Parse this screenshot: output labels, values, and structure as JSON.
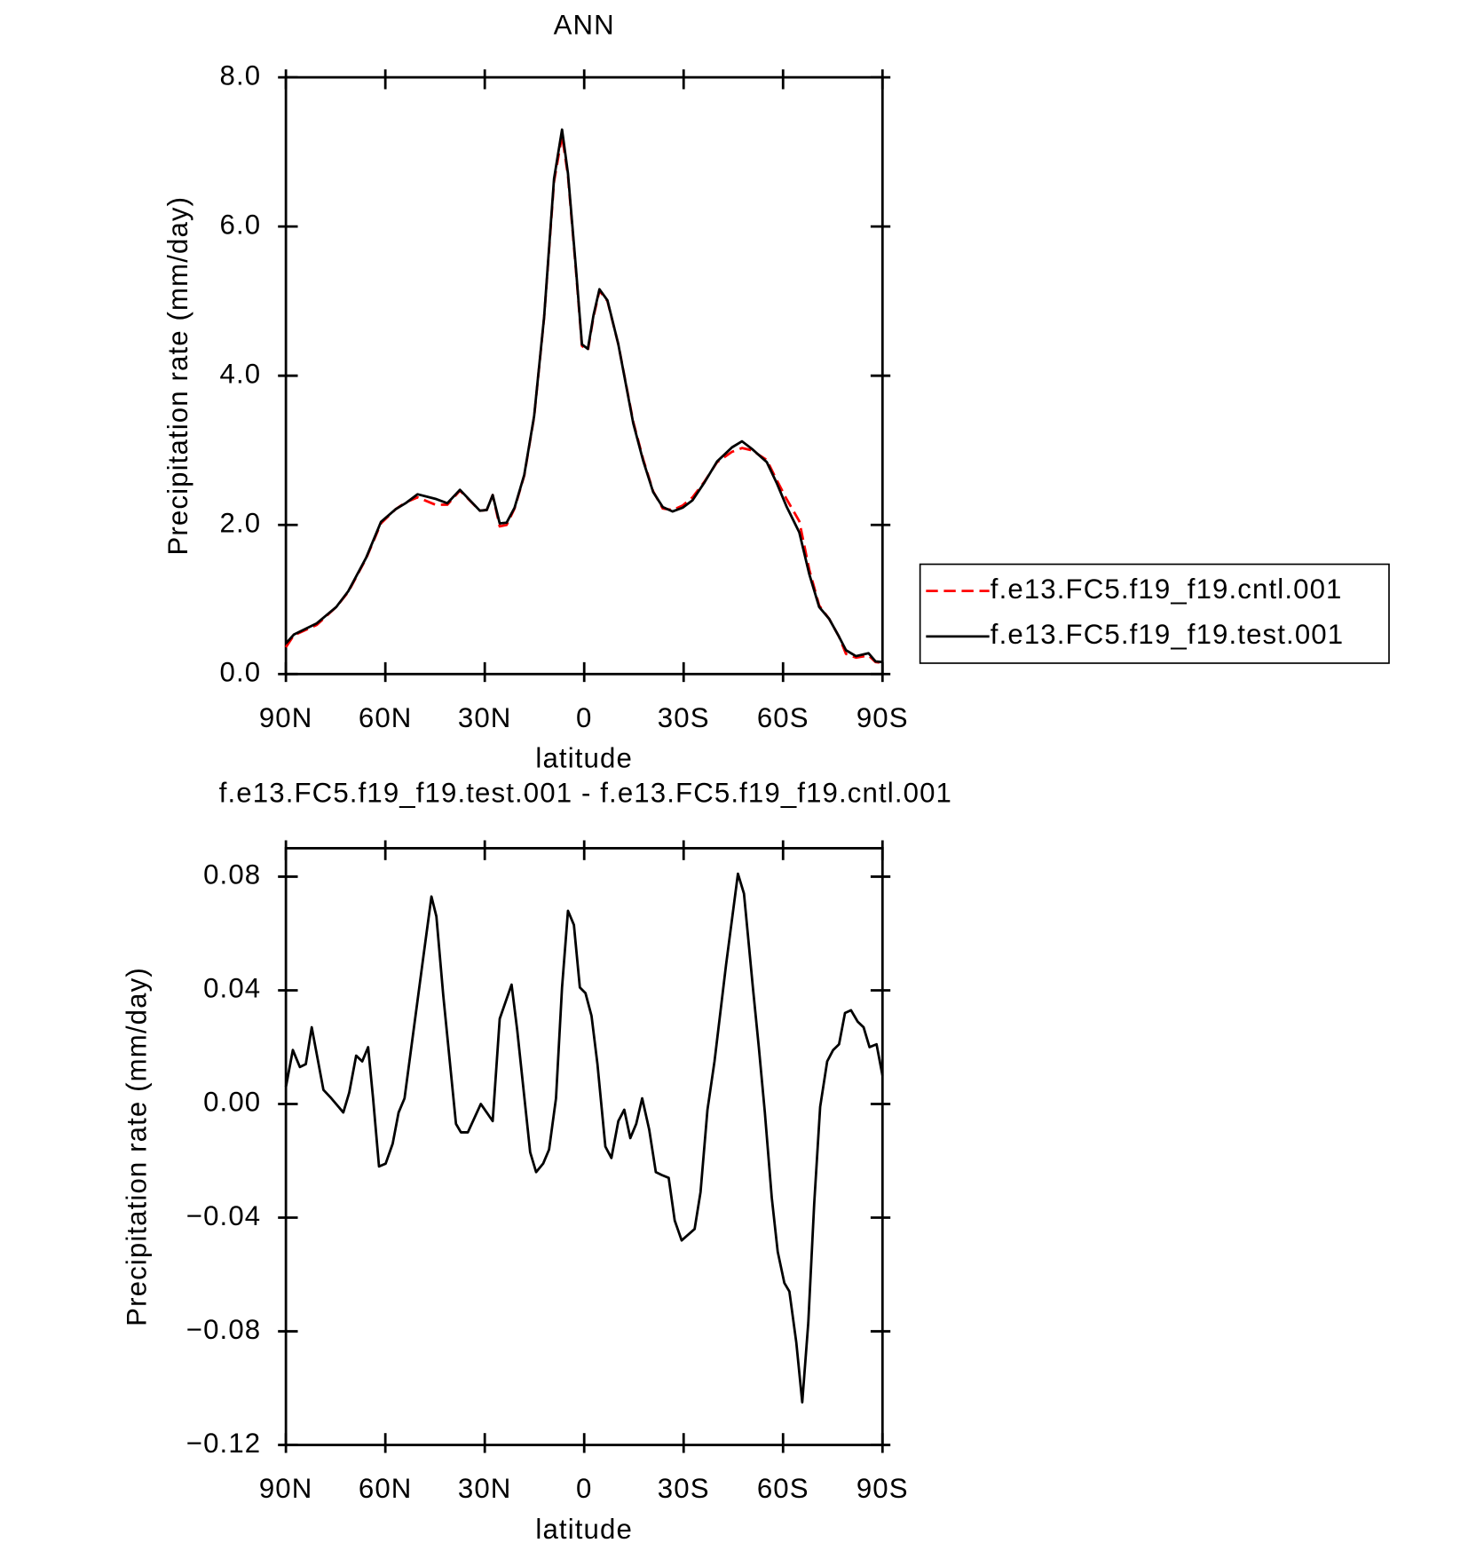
{
  "chart_data": [
    {
      "type": "line",
      "title": "ANN",
      "xlabel": "latitude",
      "ylabel": "Precipitation rate (mm/day)",
      "x": [
        90,
        87.6,
        80.7,
        74.8,
        71.2,
        65.8,
        61.3,
        56.9,
        53.9,
        50.3,
        44.9,
        41.3,
        37.5,
        31.5,
        29.4,
        27.6,
        25.5,
        23.4,
        21.0,
        18.1,
        15.1,
        12.1,
        9.1,
        6.7,
        4.9,
        2.5,
        0.7,
        -1.1,
        -2.8,
        -4.6,
        -7.0,
        -10.3,
        -14.8,
        -17.8,
        -20.8,
        -23.7,
        -26.7,
        -29.7,
        -32.7,
        -36.3,
        -40.1,
        -44.6,
        -47.6,
        -50.6,
        -55.1,
        -58.1,
        -61.0,
        -64.9,
        -67.9,
        -70.9,
        -73.9,
        -76.9,
        -79.0,
        -82.0,
        -85.8,
        -87.9,
        -90
      ],
      "series": [
        {
          "name": "f.e13.FC5.f19_f19.cntl.001",
          "color": "#ff0000",
          "dash": true,
          "values": [
            0.36,
            0.52,
            0.66,
            0.9,
            1.1,
            1.55,
            2.02,
            2.21,
            2.3,
            2.37,
            2.27,
            2.27,
            2.46,
            2.19,
            2.2,
            2.4,
            1.98,
            2.0,
            2.22,
            2.66,
            3.45,
            4.78,
            6.6,
            7.22,
            6.68,
            5.42,
            4.4,
            4.34,
            4.79,
            5.14,
            5.0,
            4.42,
            3.38,
            2.88,
            2.45,
            2.22,
            2.2,
            2.26,
            2.37,
            2.58,
            2.84,
            2.98,
            3.03,
            3.0,
            2.87,
            2.6,
            2.35,
            2.05,
            1.4,
            0.92,
            0.74,
            0.5,
            0.27,
            0.22,
            0.25,
            0.16,
            0.15
          ]
        },
        {
          "name": "f.e13.FC5.f19_f19.test.001",
          "color": "#000000",
          "dash": false,
          "values": [
            0.41,
            0.53,
            0.68,
            0.9,
            1.11,
            1.56,
            2.04,
            2.21,
            2.29,
            2.41,
            2.35,
            2.29,
            2.47,
            2.19,
            2.2,
            2.4,
            2.02,
            2.03,
            2.23,
            2.67,
            3.46,
            4.79,
            6.64,
            7.3,
            6.71,
            5.45,
            4.42,
            4.36,
            4.81,
            5.16,
            5.01,
            4.42,
            3.36,
            2.86,
            2.44,
            2.24,
            2.18,
            2.23,
            2.33,
            2.57,
            2.85,
            3.04,
            3.12,
            3.02,
            2.84,
            2.56,
            2.25,
            1.9,
            1.34,
            0.9,
            0.74,
            0.5,
            0.32,
            0.24,
            0.28,
            0.17,
            0.16
          ]
        }
      ],
      "xlim": [
        90,
        -90
      ],
      "xticks": [
        {
          "value": 90,
          "label": "90N"
        },
        {
          "value": 60,
          "label": "60N"
        },
        {
          "value": 30,
          "label": "30N"
        },
        0,
        {
          "value": -30,
          "label": "30S"
        },
        {
          "value": -60,
          "label": "60S"
        },
        {
          "value": -90,
          "label": "90S"
        }
      ],
      "ylim": [
        0,
        8
      ],
      "yticks": [
        {
          "value": 0,
          "label": "0.0"
        },
        {
          "value": 2,
          "label": "2.0"
        },
        {
          "value": 4,
          "label": "4.0"
        },
        {
          "value": 6,
          "label": "6.0"
        },
        {
          "value": 8,
          "label": "8.0"
        }
      ],
      "legend": "right"
    },
    {
      "type": "line",
      "title": "f.e13.FC5.f19_f19.test.001 - f.e13.FC5.f19_f19.cntl.001",
      "xlabel": "latitude",
      "ylabel": "Precipitation rate (mm/day)",
      "x": [
        90,
        87.9,
        85.8,
        84.0,
        82.2,
        78.7,
        76.3,
        72.7,
        70.9,
        68.8,
        67.0,
        65.2,
        63.7,
        61.9,
        59.9,
        57.8,
        56.0,
        54.2,
        48.5,
        46.1,
        44.6,
        42.5,
        38.7,
        37.2,
        35.1,
        31.2,
        27.6,
        25.5,
        21.9,
        20.2,
        16.3,
        14.5,
        12.4,
        10.6,
        8.5,
        6.7,
        4.9,
        3.1,
        1.3,
        -0.4,
        -2.2,
        -4.0,
        -6.4,
        -8.2,
        -10.3,
        -12.1,
        -13.9,
        -15.7,
        -17.5,
        -19.6,
        -21.6,
        -23.4,
        -25.5,
        -27.3,
        -29.4,
        -33.3,
        -35.1,
        -37.2,
        -39.3,
        -42.8,
        -46.4,
        -48.2,
        -50.9,
        -52.7,
        -54.5,
        -56.6,
        -58.4,
        -60.4,
        -61.9,
        -64.0,
        -65.8,
        -67.6,
        -69.4,
        -71.2,
        -73.3,
        -75.1,
        -76.9,
        -78.7,
        -80.5,
        -82.5,
        -84.3,
        -86.1,
        -88.2,
        -90
      ],
      "series": [
        {
          "color": "#000000",
          "dash": false,
          "values": [
            0.006,
            0.019,
            0.013,
            0.014,
            0.027,
            0.005,
            0.002,
            -0.003,
            0.004,
            0.017,
            0.015,
            0.02,
            0.002,
            -0.022,
            -0.021,
            -0.014,
            -0.003,
            0.002,
            0.052,
            0.073,
            0.066,
            0.038,
            -0.007,
            -0.01,
            -0.01,
            0.0,
            -0.006,
            0.03,
            0.042,
            0.026,
            -0.017,
            -0.024,
            -0.021,
            -0.016,
            0.002,
            0.041,
            0.068,
            0.063,
            0.041,
            0.039,
            0.031,
            0.014,
            -0.015,
            -0.019,
            -0.006,
            -0.002,
            -0.012,
            -0.007,
            0.002,
            -0.009,
            -0.024,
            -0.025,
            -0.026,
            -0.041,
            -0.048,
            -0.044,
            -0.031,
            -0.002,
            0.015,
            0.049,
            0.081,
            0.074,
            0.041,
            0.02,
            -0.003,
            -0.033,
            -0.052,
            -0.063,
            -0.066,
            -0.084,
            -0.105,
            -0.077,
            -0.035,
            -0.001,
            0.015,
            0.019,
            0.021,
            0.032,
            0.033,
            0.029,
            0.027,
            0.02,
            0.021,
            0.01
          ]
        }
      ],
      "xlim": [
        90,
        -90
      ],
      "xticks": [
        {
          "value": 90,
          "label": "90N"
        },
        {
          "value": 60,
          "label": "60N"
        },
        {
          "value": 30,
          "label": "30N"
        },
        0,
        {
          "value": -30,
          "label": "30S"
        },
        {
          "value": -60,
          "label": "60S"
        },
        {
          "value": -90,
          "label": "90S"
        }
      ],
      "ylim": [
        -0.12,
        0.09
      ],
      "yticks": [
        {
          "value": -0.12,
          "label": "−0.12"
        },
        {
          "value": -0.08,
          "label": "−0.08"
        },
        {
          "value": -0.04,
          "label": "−0.04"
        },
        {
          "value": 0,
          "label": "0.00"
        },
        0.04,
        0.08
      ]
    }
  ]
}
